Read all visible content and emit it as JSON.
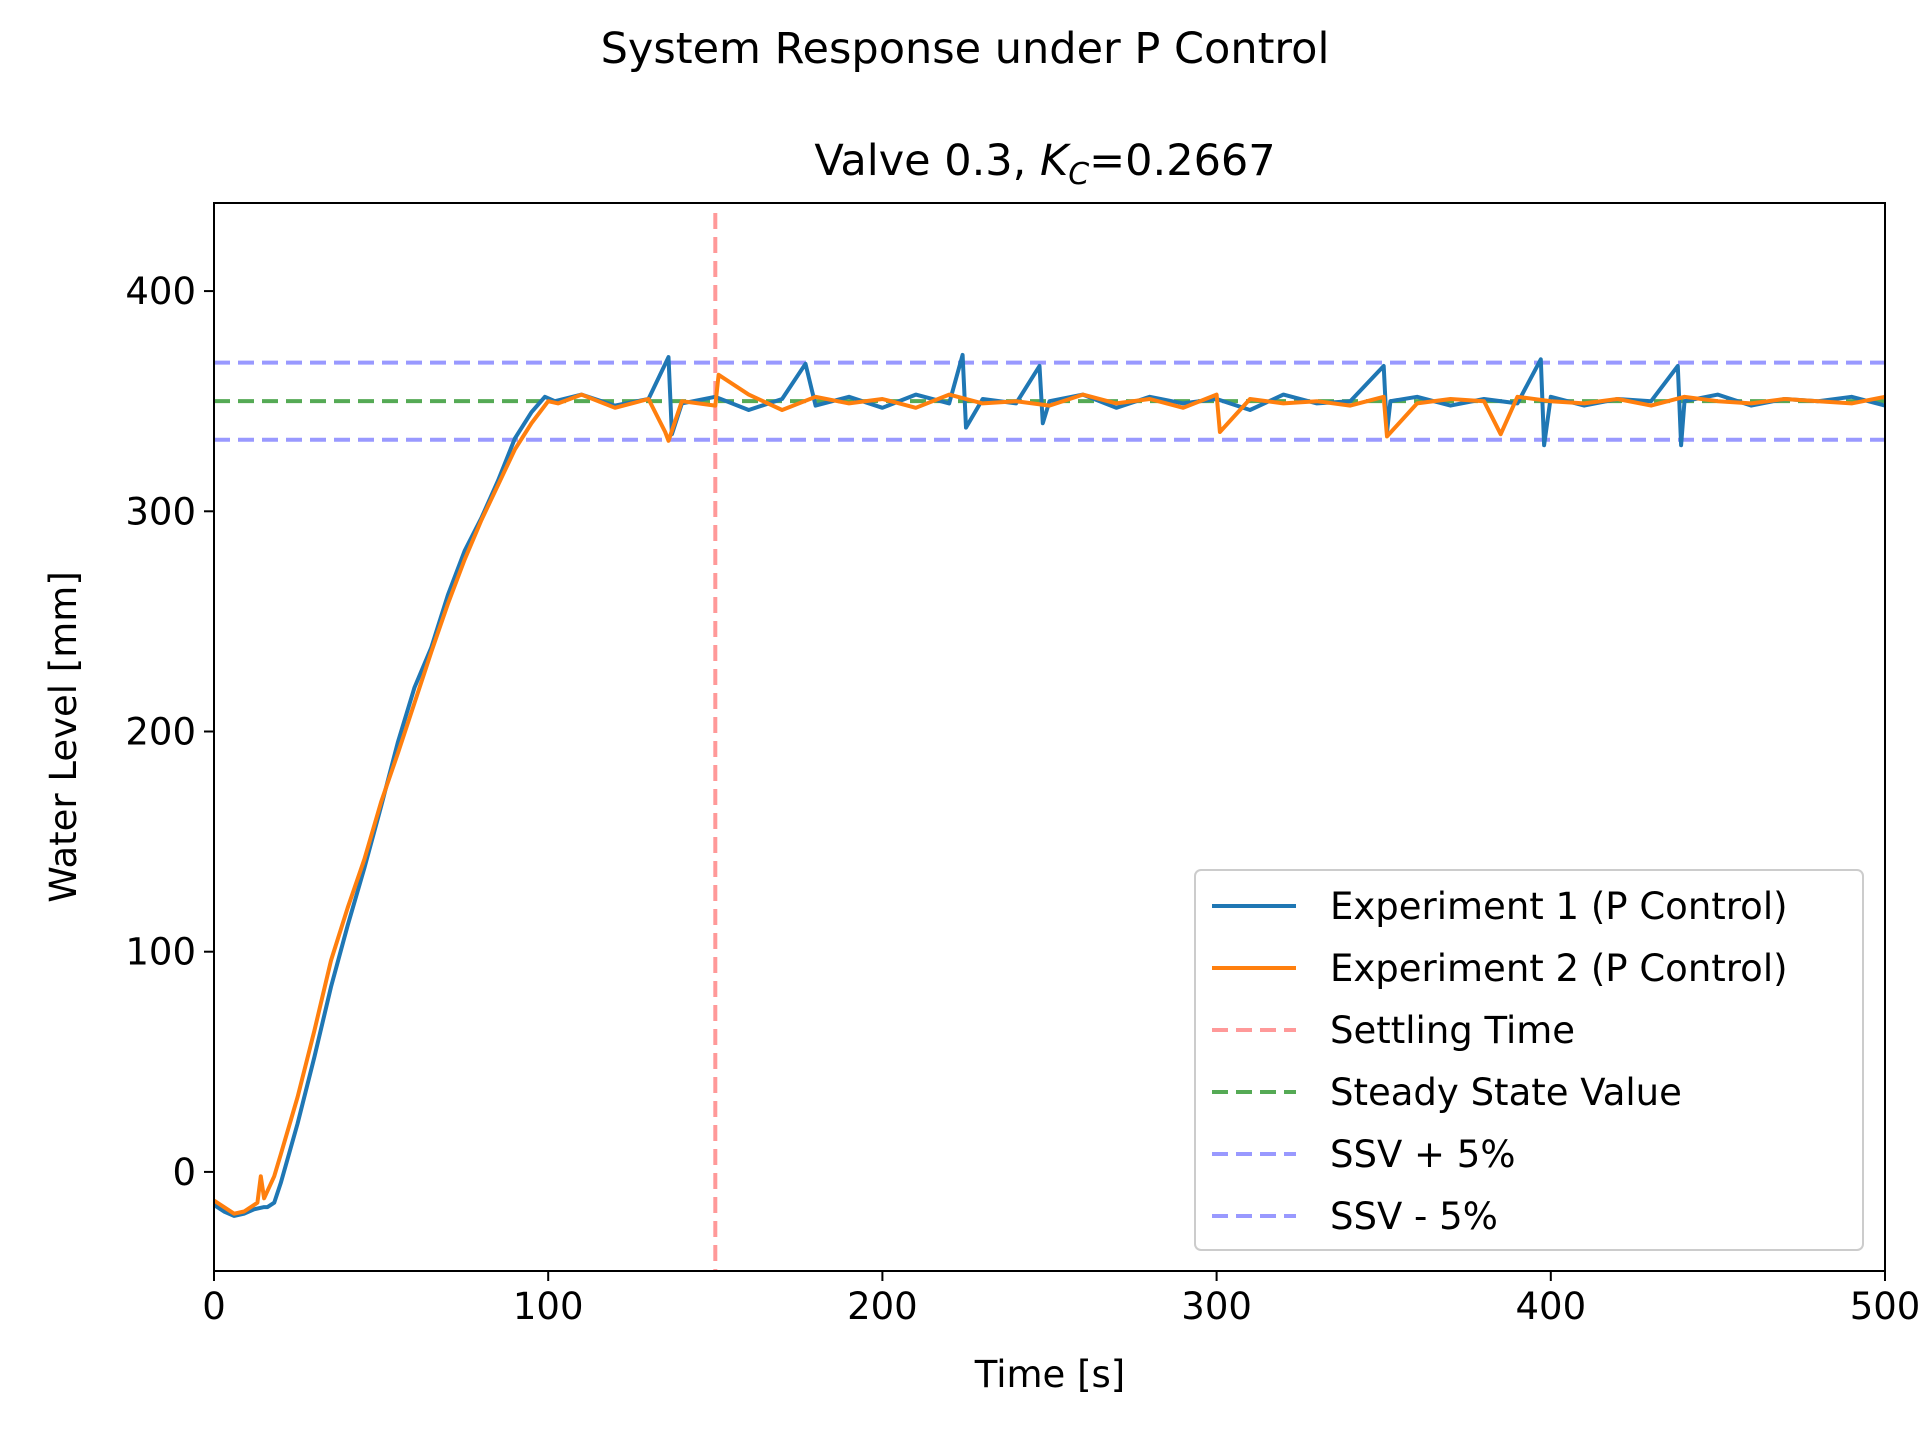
{
  "chart_data": {
    "type": "line",
    "suptitle": "System Response under P Control",
    "title_prefix": "Valve 0.3, ",
    "title_kc_base": "K",
    "title_kc_sub": "C",
    "title_kc_value": "=0.2667",
    "xlabel": "Time [s]",
    "ylabel": "Water Level [mm]",
    "xlim": [
      0,
      500
    ],
    "ylim": [
      -45,
      440
    ],
    "xticks": [
      0,
      100,
      200,
      300,
      400,
      500
    ],
    "yticks": [
      0,
      100,
      200,
      300,
      400
    ],
    "grid": false,
    "legend_position": "lower right",
    "series": [
      {
        "name": "Experiment 1 (P Control)",
        "color": "#1f77b4",
        "style": "solid",
        "x": [
          0,
          3,
          6,
          9,
          12,
          15,
          16,
          18,
          20,
          25,
          30,
          35,
          40,
          45,
          50,
          55,
          60,
          65,
          70,
          75,
          80,
          85,
          90,
          95,
          99,
          102,
          110,
          120,
          130,
          136,
          137,
          140,
          150,
          160,
          170,
          177,
          180,
          190,
          200,
          210,
          220,
          224,
          225,
          230,
          240,
          247,
          248,
          250,
          260,
          270,
          280,
          290,
          300,
          310,
          320,
          330,
          340,
          350,
          351,
          352,
          360,
          370,
          380,
          390,
          397,
          398,
          400,
          410,
          420,
          430,
          438,
          439,
          440,
          450,
          460,
          470,
          480,
          490,
          500
        ],
        "y": [
          -15,
          -18,
          -20,
          -19,
          -17,
          -16,
          -16,
          -14,
          -5,
          22,
          52,
          84,
          112,
          138,
          166,
          195,
          220,
          238,
          262,
          282,
          297,
          314,
          333,
          345,
          352,
          350,
          353,
          348,
          351,
          370,
          335,
          349,
          352,
          346,
          351,
          367,
          348,
          352,
          347,
          353,
          349,
          371,
          338,
          351,
          349,
          366,
          340,
          350,
          353,
          347,
          352,
          349,
          351,
          346,
          353,
          349,
          350,
          366,
          336,
          350,
          352,
          348,
          351,
          349,
          369,
          330,
          352,
          348,
          351,
          350,
          366,
          330,
          350,
          353,
          348,
          351,
          350,
          352,
          348
        ]
      },
      {
        "name": "Experiment 2 (P Control)",
        "color": "#ff7f0e",
        "style": "solid",
        "x": [
          0,
          3,
          6,
          9,
          12,
          13,
          14,
          15,
          18,
          20,
          25,
          30,
          35,
          40,
          45,
          50,
          55,
          60,
          65,
          70,
          75,
          80,
          85,
          90,
          95,
          100,
          103,
          110,
          120,
          130,
          135,
          136,
          140,
          150,
          151,
          160,
          170,
          180,
          190,
          200,
          210,
          220,
          230,
          240,
          250,
          260,
          270,
          280,
          290,
          300,
          301,
          310,
          320,
          330,
          340,
          350,
          351,
          360,
          370,
          380,
          385,
          390,
          400,
          410,
          420,
          430,
          440,
          450,
          460,
          470,
          480,
          490,
          500
        ],
        "y": [
          -13,
          -16,
          -19,
          -18,
          -15,
          -14,
          -2,
          -12,
          -2,
          8,
          34,
          64,
          96,
          120,
          142,
          168,
          190,
          213,
          236,
          258,
          278,
          296,
          312,
          328,
          340,
          350,
          349,
          353,
          347,
          351,
          336,
          332,
          350,
          348,
          362,
          353,
          346,
          352,
          349,
          351,
          347,
          353,
          349,
          350,
          348,
          353,
          349,
          351,
          347,
          353,
          336,
          351,
          349,
          350,
          348,
          352,
          334,
          349,
          351,
          350,
          335,
          352,
          350,
          349,
          351,
          348,
          352,
          350,
          349,
          351,
          350,
          349,
          352
        ]
      },
      {
        "name": "Settling Time",
        "color": "#ff9999",
        "style": "dashed",
        "orientation": "vertical",
        "x": 150
      },
      {
        "name": "Steady State Value",
        "color": "#55aa55",
        "style": "dashed",
        "orientation": "horizontal",
        "y": 350
      },
      {
        "name": "SSV + 5%",
        "color": "#9999ff",
        "style": "dashed",
        "orientation": "horizontal",
        "y": 367.5
      },
      {
        "name": "SSV - 5%",
        "color": "#9999ff",
        "style": "dashed",
        "orientation": "horizontal",
        "y": 332.5
      }
    ]
  }
}
